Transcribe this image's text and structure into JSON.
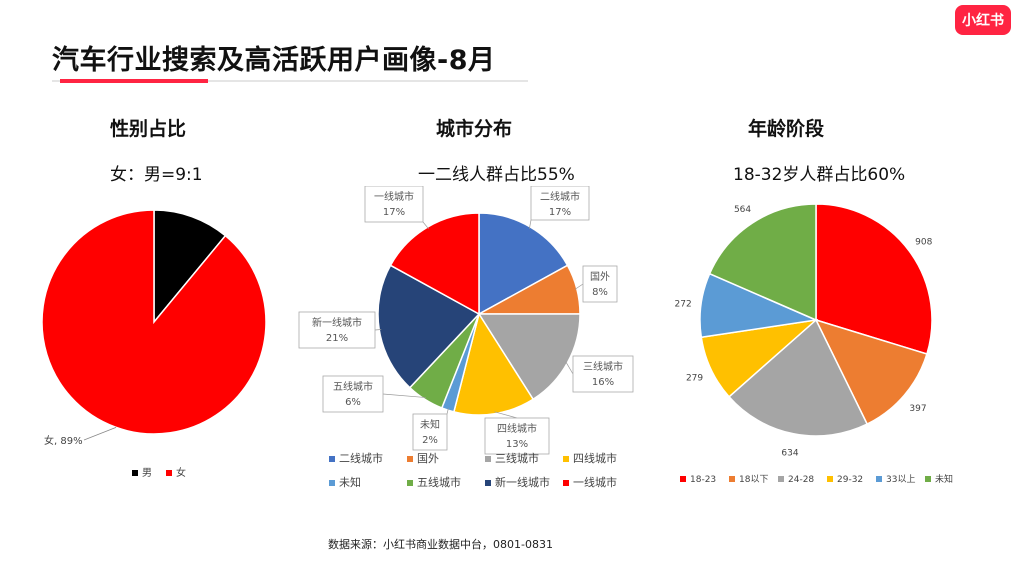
{
  "brand": {
    "logo_text": "小红书",
    "accent": "#ff2442"
  },
  "page_title": "汽车行业搜索及高活跃用户画像-8月",
  "sections": [
    {
      "title": "性别占比",
      "subtitle": "女：男=9:1"
    },
    {
      "title": "城市分布",
      "subtitle": "一二线人群占比55%"
    },
    {
      "title": "年龄阶段",
      "subtitle": "18-32岁人群占比60%"
    }
  ],
  "source_note": "数据来源：小红书商业数据中台，0801-0831",
  "chart_data": [
    {
      "type": "pie",
      "title": "性别占比",
      "slices": [
        {
          "label": "男",
          "value": 11,
          "color": "#000000",
          "data_label": ""
        },
        {
          "label": "女",
          "value": 89,
          "color": "#ff0000",
          "data_label": "女, 89%"
        }
      ],
      "legend": [
        "男",
        "女"
      ],
      "legend_position": "bottom"
    },
    {
      "type": "pie",
      "title": "城市分布",
      "slices": [
        {
          "label": "二线城市",
          "value": 17,
          "color": "#4472c4",
          "data_label": [
            "二线城市",
            "17%"
          ]
        },
        {
          "label": "国外",
          "value": 8,
          "color": "#ed7d31",
          "data_label": [
            "国外",
            "8%"
          ]
        },
        {
          "label": "三线城市",
          "value": 16,
          "color": "#a5a5a5",
          "data_label": [
            "三线城市",
            "16%"
          ]
        },
        {
          "label": "四线城市",
          "value": 13,
          "color": "#ffc000",
          "data_label": [
            "四线城市",
            "13%"
          ]
        },
        {
          "label": "未知",
          "value": 2,
          "color": "#5b9bd5",
          "data_label": [
            "未知",
            "2%"
          ]
        },
        {
          "label": "五线城市",
          "value": 6,
          "color": "#70ad47",
          "data_label": [
            "五线城市",
            "6%"
          ]
        },
        {
          "label": "新一线城市",
          "value": 21,
          "color": "#264478",
          "data_label": [
            "新一线城市",
            "21%"
          ]
        },
        {
          "label": "一线城市",
          "value": 17,
          "color": "#ff0000",
          "data_label": [
            "一线城市",
            "17%"
          ]
        }
      ],
      "legend": [
        "二线城市",
        "国外",
        "三线城市",
        "四线城市",
        "未知",
        "五线城市",
        "新一线城市",
        "一线城市"
      ],
      "legend_position": "bottom"
    },
    {
      "type": "pie",
      "title": "年龄阶段",
      "slices": [
        {
          "label": "18-23",
          "value": 908,
          "color": "#ff0000",
          "data_label": "908"
        },
        {
          "label": "18以下",
          "value": 397,
          "color": "#ed7d31",
          "data_label": "397"
        },
        {
          "label": "24-28",
          "value": 634,
          "color": "#a5a5a5",
          "data_label": "634"
        },
        {
          "label": "29-32",
          "value": 279,
          "color": "#ffc000",
          "data_label": "279"
        },
        {
          "label": "33以上",
          "value": 272,
          "color": "#5b9bd5",
          "data_label": "272"
        },
        {
          "label": "未知",
          "value": 564,
          "color": "#70ad47",
          "data_label": "564"
        }
      ],
      "legend": [
        "18-23",
        "18以下",
        "24-28",
        "29-32",
        "33以上",
        "未知"
      ],
      "legend_position": "bottom"
    }
  ]
}
